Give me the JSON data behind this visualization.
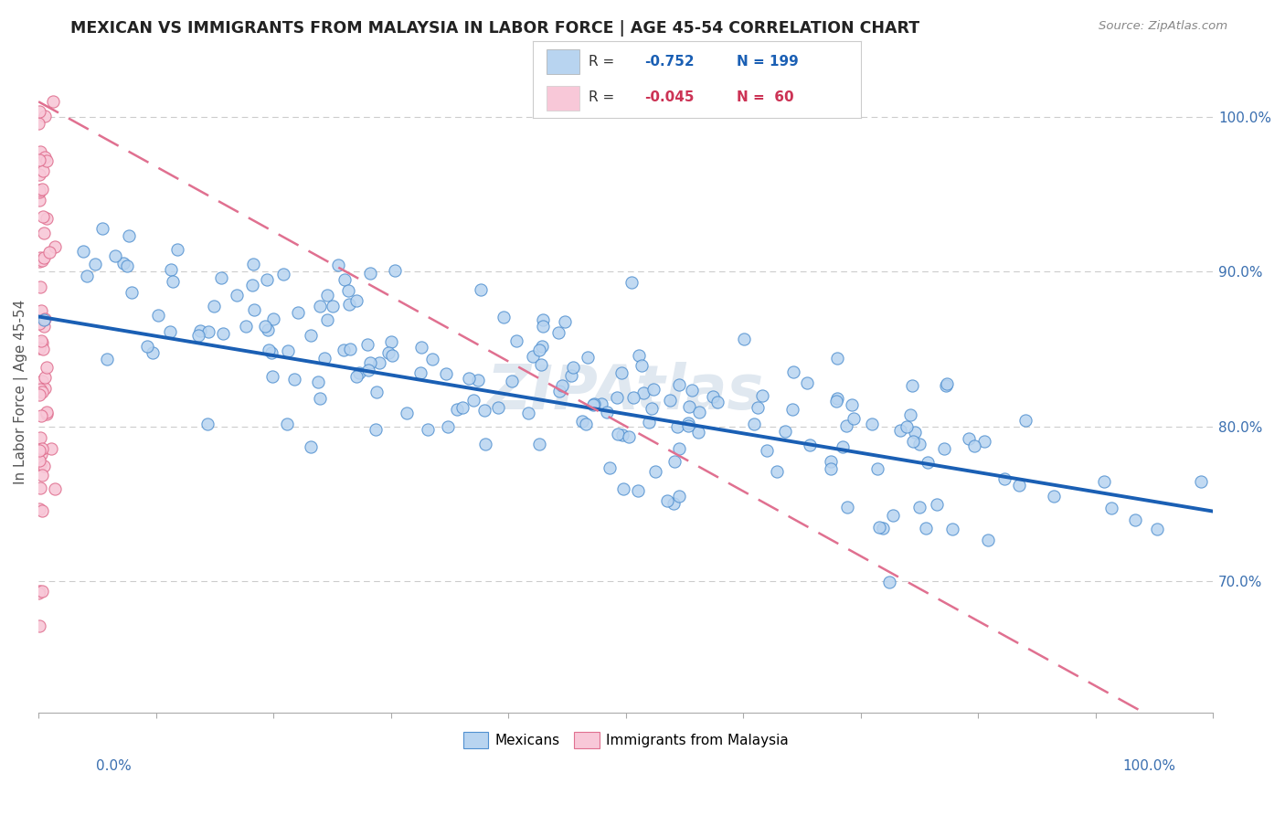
{
  "title": "MEXICAN VS IMMIGRANTS FROM MALAYSIA IN LABOR FORCE | AGE 45-54 CORRELATION CHART",
  "source_text": "Source: ZipAtlas.com",
  "ylabel": "In Labor Force | Age 45-54",
  "ylabel_right_ticks": [
    "70.0%",
    "80.0%",
    "90.0%",
    "100.0%"
  ],
  "ylabel_right_values": [
    0.7,
    0.8,
    0.9,
    1.0
  ],
  "bottom_legend": [
    "Mexicans",
    "Immigrants from Malaysia"
  ],
  "mexicans_color": "#b8d4f0",
  "mexicans_edge_color": "#5090d0",
  "mexicans_line_color": "#1a5fb4",
  "malaysia_color": "#f8c8d8",
  "malaysia_edge_color": "#e07090",
  "malaysia_line_color": "#e07090",
  "R_mexican": -0.752,
  "N_mexican": 199,
  "R_malaysia": -0.045,
  "N_malaysia": 60,
  "x_range": [
    0.0,
    1.0
  ],
  "y_range": [
    0.615,
    1.03
  ],
  "background_color": "#ffffff",
  "grid_color": "#cccccc",
  "watermark": "ZIPAtlas",
  "watermark_color": "#e0e8f0"
}
